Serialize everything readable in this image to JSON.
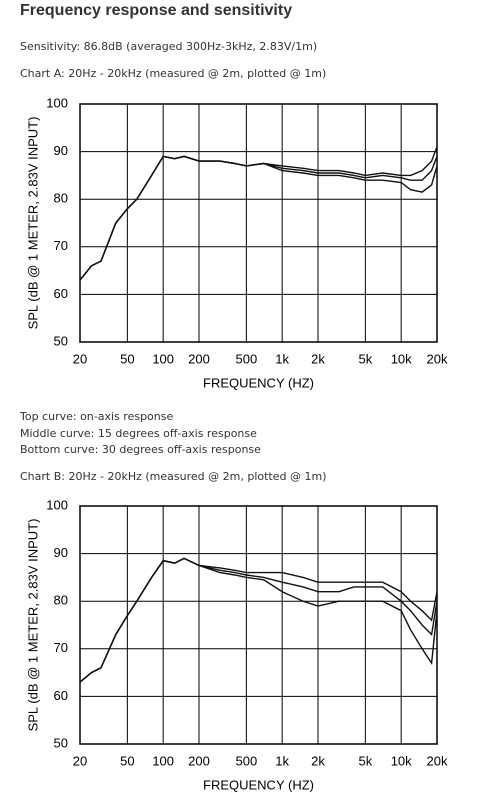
{
  "header": {
    "title": "Frequency response and sensitivity"
  },
  "paragraphs": [
    "Sensitivity: 86.8dB (averaged 300Hz-3kHz, 2.83V/1m)"
  ],
  "notes": [
    "Top curve: on-axis response",
    "Middle curve: 15 degrees off-axis response",
    "Bottom curve: 30 degrees off-axis response"
  ],
  "chart_data": [
    {
      "type": "line",
      "caption": "Chart A: 20Hz - 20kHz (measured @ 2m, plotted @ 1m)",
      "xlabel": "FREQUENCY  (HZ)",
      "ylabel": "SPL (dB @ 1 METER, 2.83V INPUT)",
      "log_x": true,
      "grid": true,
      "xlim": [
        20,
        20000
      ],
      "ylim": [
        50,
        100
      ],
      "xticks": [
        20,
        50,
        100,
        200,
        500,
        {
          "value": 1000,
          "label": "1k"
        },
        {
          "value": 2000,
          "label": "2k"
        },
        {
          "value": 5000,
          "label": "5k"
        },
        {
          "value": 10000,
          "label": "10k"
        },
        {
          "value": 20000,
          "label": "20k"
        }
      ],
      "yticks": [
        50,
        60,
        70,
        80,
        90,
        100
      ],
      "x": [
        20,
        25,
        30,
        40,
        50,
        60,
        80,
        100,
        125,
        150,
        200,
        300,
        400,
        500,
        700,
        1000,
        1500,
        2000,
        3000,
        4000,
        5000,
        7000,
        10000,
        12000,
        15000,
        18000,
        20000
      ],
      "series": [
        {
          "color": "#111111",
          "values": [
            63,
            66,
            67,
            75,
            78,
            80,
            85,
            89,
            88.5,
            89,
            88,
            88,
            87.5,
            87,
            87.5,
            87,
            86.5,
            86,
            86,
            85.5,
            85,
            85.5,
            85,
            85,
            86,
            88,
            91
          ]
        },
        {
          "color": "#111111",
          "values": [
            63,
            66,
            67,
            75,
            78,
            80,
            85,
            89,
            88.5,
            89,
            88,
            88,
            87.5,
            87,
            87.5,
            86.5,
            86,
            85.5,
            85.5,
            85,
            84.5,
            85,
            84.5,
            84,
            84,
            86,
            89
          ]
        },
        {
          "color": "#111111",
          "values": [
            63,
            66,
            67,
            75,
            78,
            80,
            85,
            89,
            88.5,
            89,
            88,
            88,
            87.5,
            87,
            87.5,
            86,
            85.5,
            85,
            85,
            84.5,
            84,
            84,
            83.5,
            82,
            81.5,
            83,
            87
          ]
        }
      ]
    },
    {
      "type": "line",
      "caption": "Chart B: 20Hz - 20kHz (measured @ 2m, plotted @ 1m)",
      "xlabel": "FREQUENCY  (HZ)",
      "ylabel": "SPL (dB @ 1 METER, 2.83V INPUT)",
      "log_x": true,
      "grid": true,
      "xlim": [
        20,
        20000
      ],
      "ylim": [
        50,
        100
      ],
      "xticks": [
        20,
        50,
        100,
        200,
        500,
        {
          "value": 1000,
          "label": "1k"
        },
        {
          "value": 2000,
          "label": "2k"
        },
        {
          "value": 5000,
          "label": "5k"
        },
        {
          "value": 10000,
          "label": "10k"
        },
        {
          "value": 20000,
          "label": "20k"
        }
      ],
      "yticks": [
        50,
        60,
        70,
        80,
        90,
        100
      ],
      "x": [
        20,
        25,
        30,
        40,
        50,
        60,
        80,
        100,
        125,
        150,
        200,
        300,
        400,
        500,
        700,
        1000,
        1500,
        2000,
        3000,
        4000,
        5000,
        7000,
        10000,
        12000,
        15000,
        18000,
        20000
      ],
      "series": [
        {
          "color": "#111111",
          "values": [
            63,
            65,
            66,
            73,
            77,
            80,
            85,
            88.5,
            88,
            89,
            87.5,
            87,
            86.5,
            86,
            86,
            86,
            85,
            84,
            84,
            84,
            84,
            84,
            82,
            80,
            78,
            76,
            82
          ]
        },
        {
          "color": "#111111",
          "values": [
            63,
            65,
            66,
            73,
            77,
            80,
            85,
            88.5,
            88,
            89,
            87.5,
            86.5,
            86,
            85.5,
            85,
            84,
            83,
            82,
            82,
            83,
            83,
            83,
            80,
            78,
            75,
            73,
            80
          ]
        },
        {
          "color": "#111111",
          "values": [
            63,
            65,
            66,
            73,
            77,
            80,
            85,
            88.5,
            88,
            89,
            87.5,
            86,
            85.5,
            85,
            84.5,
            82,
            80,
            79,
            80,
            80,
            80,
            80,
            78,
            74,
            70,
            67,
            78
          ]
        }
      ]
    }
  ]
}
